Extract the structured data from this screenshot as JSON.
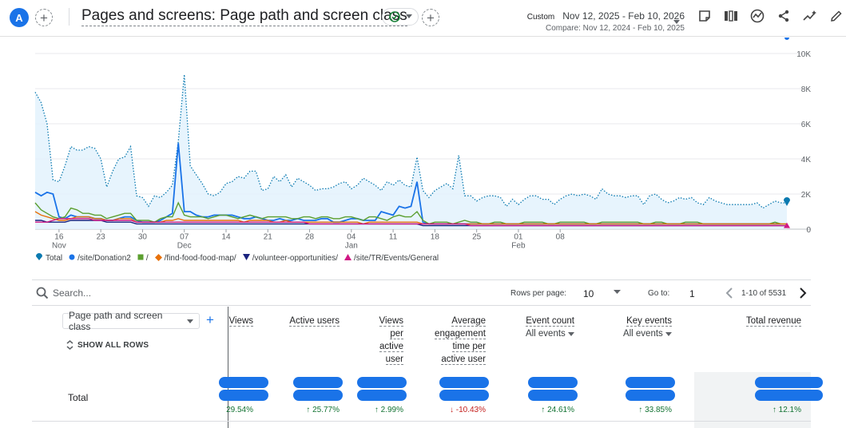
{
  "header": {
    "avatar_letter": "A",
    "title": "Pages and screens: Page path and screen class",
    "date_label": "Custom",
    "date_range": "Nov 12, 2025 - Feb 10, 2026",
    "compare_range": "Compare: Nov 12, 2024 - Feb 10, 2025"
  },
  "chart_data": {
    "type": "line",
    "y_ticks": [
      "10K",
      "8K",
      "6K",
      "4K",
      "2K",
      "0"
    ],
    "ylim": [
      0,
      10000
    ],
    "x_ticks": [
      {
        "day": "16",
        "month": "Nov"
      },
      {
        "day": "23",
        "month": ""
      },
      {
        "day": "30",
        "month": ""
      },
      {
        "day": "07",
        "month": "Dec"
      },
      {
        "day": "14",
        "month": ""
      },
      {
        "day": "21",
        "month": ""
      },
      {
        "day": "28",
        "month": ""
      },
      {
        "day": "04",
        "month": "Jan"
      },
      {
        "day": "11",
        "month": ""
      },
      {
        "day": "18",
        "month": ""
      },
      {
        "day": "25",
        "month": ""
      },
      {
        "day": "01",
        "month": "Feb"
      },
      {
        "day": "08",
        "month": ""
      }
    ],
    "x_start": "2025-11-12",
    "series": [
      {
        "name": "Total",
        "color": "#0b7ab0",
        "style": "dotted-area",
        "values": [
          7800,
          7200,
          6000,
          2800,
          2700,
          3600,
          4700,
          4500,
          4500,
          4700,
          4600,
          4000,
          2400,
          3300,
          4000,
          4100,
          4700,
          1900,
          1800,
          1300,
          1900,
          1800,
          2100,
          2500,
          5000,
          8800,
          3600,
          3100,
          2600,
          2000,
          1900,
          2100,
          2600,
          2700,
          3000,
          2900,
          3300,
          3300,
          2200,
          2300,
          3000,
          2700,
          3100,
          2400,
          2900,
          2700,
          2500,
          2200,
          2300,
          2300,
          2400,
          2600,
          2700,
          2300,
          2500,
          2900,
          2700,
          2500,
          2200,
          2700,
          2500,
          2800,
          2500,
          2400,
          4100,
          2200,
          1800,
          2200,
          2400,
          2600,
          2300,
          4200,
          1900,
          1900,
          1600,
          1800,
          1900,
          1900,
          1800,
          1300,
          1700,
          1400,
          1700,
          1900,
          1900,
          1700,
          1700,
          1400,
          1700,
          1900,
          2000,
          1900,
          2000,
          1900,
          1700,
          2300,
          2000,
          1900,
          1900,
          1800,
          1900,
          1900,
          1400,
          1900,
          2000,
          1700,
          1500,
          1600,
          1800,
          1700,
          1800,
          1500,
          1400,
          1800,
          1600,
          1500,
          1400,
          1400,
          1400,
          1400,
          1400,
          1500,
          1200,
          1400,
          1600,
          1500,
          1500
        ]
      },
      {
        "name": "/site/Donation2",
        "color": "#1a73e8",
        "style": "solid",
        "values": [
          2100,
          1900,
          2100,
          2000,
          700,
          600,
          800,
          700,
          700,
          700,
          600,
          600,
          500,
          500,
          600,
          700,
          700,
          500,
          400,
          400,
          400,
          500,
          700,
          900,
          4900,
          1000,
          1000,
          800,
          700,
          700,
          800,
          800,
          800,
          800,
          700,
          600,
          600,
          700,
          600,
          500,
          500,
          600,
          500,
          500,
          600,
          500,
          500,
          500,
          600,
          600,
          400,
          400,
          500,
          600,
          600,
          500,
          500,
          500,
          1000,
          900,
          800,
          1300,
          1200,
          1300,
          2700,
          400,
          300,
          300,
          300,
          300,
          300,
          300,
          300,
          300,
          300,
          300,
          300,
          300,
          300,
          300,
          300,
          300,
          300,
          300,
          300,
          300,
          300,
          300,
          300,
          300,
          300,
          300,
          300,
          300,
          300,
          300,
          300,
          300,
          300,
          300,
          300,
          300,
          300,
          300,
          300,
          300,
          300,
          300,
          300,
          300,
          300,
          300,
          300,
          300,
          300,
          300,
          300,
          300,
          300,
          300,
          300,
          300,
          300,
          300,
          300,
          300
        ]
      },
      {
        "name": "/",
        "color": "#5b9f2f",
        "style": "solid",
        "values": [
          1500,
          1100,
          900,
          700,
          600,
          700,
          1200,
          1100,
          900,
          900,
          800,
          800,
          600,
          700,
          800,
          900,
          900,
          500,
          500,
          500,
          400,
          600,
          700,
          700,
          1500,
          800,
          700,
          700,
          700,
          600,
          700,
          800,
          800,
          700,
          600,
          700,
          800,
          700,
          600,
          700,
          700,
          700,
          700,
          600,
          600,
          700,
          700,
          600,
          700,
          700,
          600,
          600,
          700,
          700,
          600,
          500,
          700,
          700,
          600,
          500,
          700,
          800,
          700,
          700,
          1000,
          500,
          300,
          400,
          400,
          400,
          300,
          400,
          500,
          400,
          400,
          300,
          300,
          400,
          400,
          300,
          300,
          300,
          400,
          400,
          400,
          400,
          300,
          300,
          400,
          400,
          400,
          400,
          400,
          300,
          300,
          400,
          400,
          400,
          400,
          400,
          400,
          400,
          300,
          300,
          400,
          400,
          300,
          300,
          300,
          400,
          400,
          400,
          300,
          300,
          300,
          300,
          300,
          300,
          300,
          300,
          300,
          300,
          300,
          300,
          400,
          300,
          300
        ]
      },
      {
        "name": "/find-food-food-map/",
        "color": "#e8710a",
        "style": "solid",
        "values": [
          1000,
          800,
          700,
          600,
          500,
          500,
          600,
          700,
          700,
          700,
          600,
          600,
          500,
          500,
          600,
          600,
          600,
          400,
          400,
          400,
          400,
          400,
          500,
          500,
          600,
          500,
          500,
          500,
          500,
          500,
          500,
          500,
          500,
          500,
          500,
          400,
          500,
          500,
          500,
          500,
          400,
          400,
          500,
          400,
          400,
          400,
          400,
          400,
          400,
          400,
          400,
          400,
          400,
          400,
          400,
          300,
          400,
          400,
          400,
          400,
          400,
          400,
          400,
          400,
          400,
          300,
          300,
          300,
          300,
          300,
          300,
          300,
          300,
          300,
          300,
          300,
          300,
          300,
          300,
          300,
          300,
          300,
          300,
          300,
          300,
          300,
          300,
          300,
          300,
          300,
          300,
          300,
          300,
          300,
          300,
          300,
          300,
          300,
          300,
          300,
          300,
          300,
          300,
          300,
          300,
          300,
          300,
          300,
          300,
          300,
          300,
          300,
          300,
          300,
          300,
          300,
          300,
          300,
          300,
          300,
          300,
          300,
          300,
          300,
          300,
          300,
          300
        ]
      },
      {
        "name": "/volunteer-opportunities/",
        "color": "#1a237e",
        "style": "solid",
        "values": [
          500,
          500,
          400,
          400,
          400,
          400,
          500,
          500,
          500,
          500,
          500,
          500,
          400,
          400,
          400,
          400,
          400,
          300,
          300,
          300,
          300,
          300,
          300,
          300,
          300,
          300,
          300,
          300,
          300,
          300,
          300,
          300,
          300,
          300,
          300,
          300,
          300,
          300,
          300,
          300,
          300,
          300,
          300,
          300,
          300,
          300,
          300,
          300,
          300,
          300,
          300,
          300,
          300,
          300,
          300,
          300,
          300,
          300,
          300,
          300,
          300,
          300,
          300,
          300,
          300,
          200,
          200,
          200,
          200,
          200,
          200,
          200,
          200,
          200,
          200,
          200,
          200,
          200,
          200,
          200,
          200,
          200,
          200,
          200,
          200,
          200,
          200,
          200,
          200,
          200,
          200,
          200,
          200,
          200,
          200,
          200,
          200,
          200,
          200,
          200,
          200,
          200,
          200,
          200,
          200,
          200,
          200,
          200,
          200,
          200,
          200,
          200,
          200,
          200,
          200,
          200,
          200,
          200,
          200,
          200,
          200,
          200,
          200,
          200,
          200,
          200,
          200
        ]
      },
      {
        "name": "/site/TR/Events/General",
        "color": "#d01884",
        "style": "solid",
        "values": [
          400,
          400,
          400,
          500,
          600,
          600,
          600,
          600,
          600,
          600,
          500,
          500,
          500,
          500,
          500,
          500,
          500,
          400,
          400,
          400,
          400,
          400,
          400,
          400,
          400,
          400,
          400,
          400,
          400,
          400,
          400,
          400,
          400,
          400,
          400,
          400,
          400,
          400,
          400,
          400,
          400,
          400,
          400,
          400,
          400,
          400,
          300,
          300,
          300,
          300,
          300,
          300,
          300,
          300,
          300,
          300,
          300,
          300,
          300,
          300,
          300,
          300,
          300,
          300,
          300,
          300,
          300,
          300,
          300,
          300,
          300,
          300,
          300,
          200,
          200,
          200,
          200,
          200,
          200,
          200,
          200,
          200,
          200,
          200,
          200,
          200,
          200,
          200,
          200,
          200,
          200,
          200,
          200,
          200,
          200,
          200,
          200,
          200,
          200,
          200,
          200,
          200,
          200,
          200,
          200,
          200,
          200,
          200,
          200,
          200,
          200,
          200,
          200,
          200,
          200,
          200,
          200,
          200,
          200,
          200,
          200,
          200,
          200,
          200,
          200,
          200,
          200
        ]
      }
    ]
  },
  "legend": [
    {
      "label": "Total",
      "color": "#0b7ab0",
      "icon": "teardrop-icon"
    },
    {
      "label": "/site/Donation2",
      "color": "#1a73e8",
      "icon": "circle-icon"
    },
    {
      "label": "/",
      "color": "#5b9f2f",
      "icon": "square-icon"
    },
    {
      "label": "/find-food-food-map/",
      "color": "#e8710a",
      "icon": "diamond-icon"
    },
    {
      "label": "/volunteer-opportunities/",
      "color": "#1a237e",
      "icon": "triangle-down-icon"
    },
    {
      "label": "/site/TR/Events/General",
      "color": "#d01884",
      "icon": "triangle-up-icon"
    }
  ],
  "table_controls": {
    "search_placeholder": "Search...",
    "rows_per_page_label": "Rows per page:",
    "rows_per_page_value": "10",
    "goto_label": "Go to:",
    "goto_value": "1",
    "page_range": "1-10 of 5531"
  },
  "table": {
    "dimension_select": "Page path and screen class",
    "show_all_rows": "SHOW ALL ROWS",
    "total_label": "Total",
    "columns": [
      {
        "lines": [
          "Views"
        ],
        "sub": "",
        "change": "29.54%",
        "direction": "up"
      },
      {
        "lines": [
          "Active users"
        ],
        "sub": "",
        "change": "↑ 25.77%",
        "direction": "up"
      },
      {
        "lines": [
          "Views",
          "per",
          "active",
          "user"
        ],
        "sub": "",
        "change": "↑ 2.99%",
        "direction": "up"
      },
      {
        "lines": [
          "Average",
          "engagement",
          "time per",
          "active user"
        ],
        "sub": "",
        "change": "↓ -10.43%",
        "direction": "down"
      },
      {
        "lines": [
          "Event count"
        ],
        "sub": "All events",
        "change": "↑ 24.61%",
        "direction": "up"
      },
      {
        "lines": [
          "Key events"
        ],
        "sub": "All events",
        "change": "↑ 33.85%",
        "direction": "up"
      },
      {
        "lines": [
          "Total revenue"
        ],
        "sub": "",
        "change": "↑ 12.1%",
        "direction": "up"
      }
    ]
  }
}
